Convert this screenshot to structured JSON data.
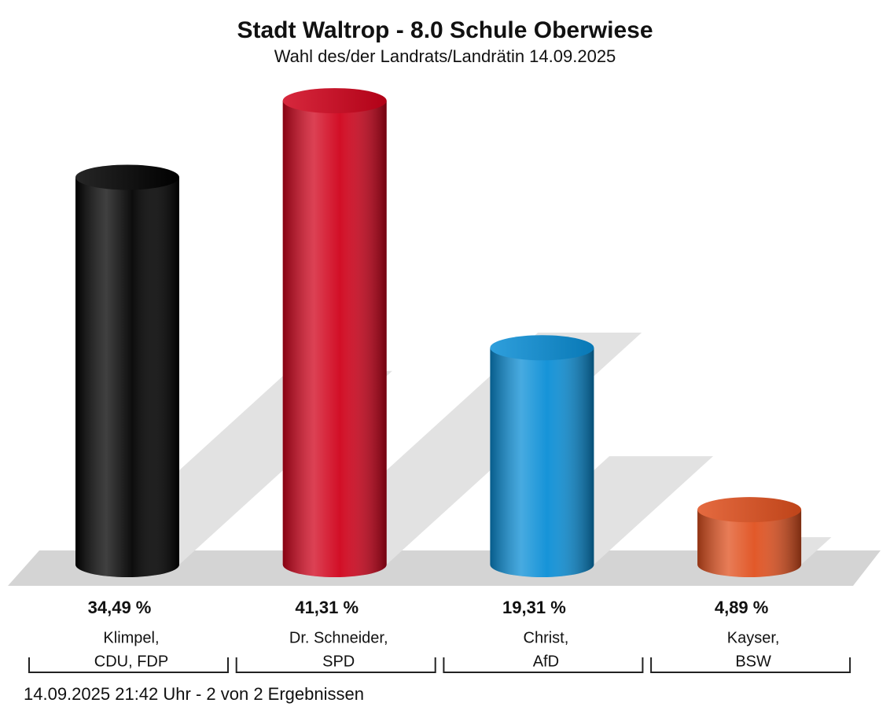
{
  "chart_data": {
    "type": "bar",
    "title": "Stadt Waltrop - 8.0 Schule Oberwiese",
    "subtitle": "Wahl des/der Landrats/Landrätin 14.09.2025",
    "categories": [
      [
        "Klimpel,",
        "CDU, FDP"
      ],
      [
        "Dr. Schneider,",
        "SPD"
      ],
      [
        "Christ,",
        "AfD"
      ],
      [
        "Kayser,",
        "BSW"
      ]
    ],
    "values": [
      34.49,
      41.31,
      19.31,
      4.89
    ],
    "value_labels": [
      "34,49 %",
      "41,31 %",
      "19,31 %",
      "4,89 %"
    ],
    "colors": [
      "#000000",
      "#d0021b",
      "#0a8ed6",
      "#e0501e"
    ],
    "footer": "14.09.2025 21:42 Uhr - 2 von 2 Ergebnissen"
  }
}
